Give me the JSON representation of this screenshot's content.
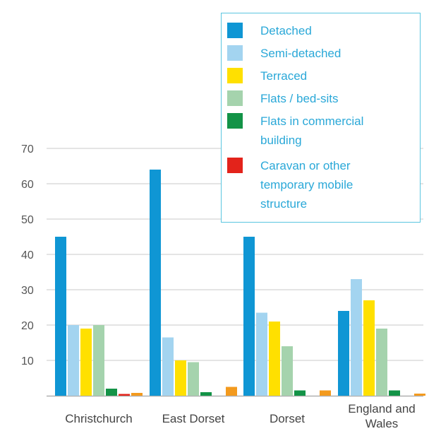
{
  "chart_data": {
    "type": "bar",
    "categories": [
      "Christchurch",
      "East Dorset",
      "Dorset",
      "England and Wales"
    ],
    "series": [
      {
        "name": "Detached",
        "color": "#0f96d4",
        "values": [
          45,
          64,
          45,
          24
        ]
      },
      {
        "name": "Semi-detached",
        "color": "#a3d4f0",
        "values": [
          20,
          16.5,
          23.5,
          33
        ]
      },
      {
        "name": "Terraced",
        "color": "#ffe000",
        "values": [
          19,
          10,
          21,
          27
        ]
      },
      {
        "name": "Flats / bed-sits",
        "color": "#a5d3ad",
        "values": [
          20,
          9.5,
          14,
          19
        ]
      },
      {
        "name": "Flats in commercial building",
        "color": "#139347",
        "values": [
          2,
          1,
          1.5,
          1.5
        ]
      },
      {
        "name": "Caravan or other temporary mobile structure",
        "color": "#e3231b",
        "values": [
          0.5,
          0,
          0,
          0
        ]
      },
      {
        "color": "#f39a1e",
        "values": [
          0.8,
          2.5,
          1.5,
          0.6
        ]
      }
    ],
    "yticks": [
      10,
      20,
      30,
      40,
      50,
      60,
      70
    ],
    "ylim": [
      0,
      70
    ],
    "grid": true,
    "legend": "top-right"
  },
  "legend_labels": [
    "Detached",
    "Semi-detached",
    "Terraced",
    "Flats / bed-sits",
    "Flats in commercial\nbuilding",
    "Caravan or other\ntemporary mobile\nstructure"
  ],
  "category_labels": [
    "Christchurch",
    "East Dorset",
    "Dorset",
    "England and\nWales"
  ]
}
